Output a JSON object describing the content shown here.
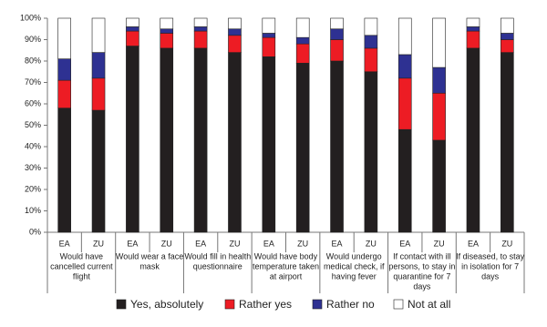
{
  "chart_data": {
    "type": "stacked-bar",
    "categories": [
      "EA",
      "ZU",
      "EA",
      "ZU",
      "EA",
      "ZU",
      "EA",
      "ZU",
      "EA",
      "ZU",
      "EA",
      "ZU",
      "EA",
      "ZU"
    ],
    "groups": [
      [
        "Would have",
        "cancelled current",
        "flight"
      ],
      [
        "Would wear a face",
        "mask"
      ],
      [
        "Would fill in health",
        "questionnaire"
      ],
      [
        "Would have body",
        "temperature taken",
        "at airport"
      ],
      [
        "Would undergo",
        "medical check, if",
        "having fever"
      ],
      [
        "If contact with ill",
        "persons, to stay in",
        "quarantine for 7",
        "days"
      ],
      [
        "If diseased, to stay",
        "in isolation for 7",
        "days"
      ]
    ],
    "series": [
      {
        "name": "Yes, absolutely",
        "color": "#231f20",
        "values": [
          58,
          57,
          87,
          86,
          86,
          84,
          82,
          79,
          80,
          75,
          48,
          43,
          86,
          84
        ]
      },
      {
        "name": "Rather yes",
        "color": "#ed1c24",
        "values": [
          13,
          15,
          7,
          7,
          8,
          8,
          9,
          9,
          10,
          11,
          24,
          22,
          8,
          6
        ]
      },
      {
        "name": "Rather no",
        "color": "#2e3192",
        "values": [
          10,
          12,
          2,
          2,
          2,
          3,
          2,
          3,
          5,
          6,
          11,
          12,
          2,
          3
        ]
      },
      {
        "name": "Not at all",
        "color": "#ffffff",
        "values": [
          19,
          16,
          4,
          5,
          4,
          5,
          7,
          9,
          5,
          8,
          17,
          23,
          4,
          7
        ]
      }
    ],
    "ylim": [
      0,
      100
    ],
    "yticks": [
      {
        "value": 0,
        "label": "0%"
      },
      {
        "value": 10,
        "label": "10%"
      },
      {
        "value": 20,
        "label": "20%"
      },
      {
        "value": 30,
        "label": "30%"
      },
      {
        "value": 40,
        "label": "40%"
      },
      {
        "value": 50,
        "label": "50%"
      },
      {
        "value": 60,
        "label": "60%"
      },
      {
        "value": 70,
        "label": "70%"
      },
      {
        "value": 80,
        "label": "80%"
      },
      {
        "value": 90,
        "label": "90%"
      },
      {
        "value": 100,
        "label": "100%"
      }
    ],
    "grid": false
  }
}
